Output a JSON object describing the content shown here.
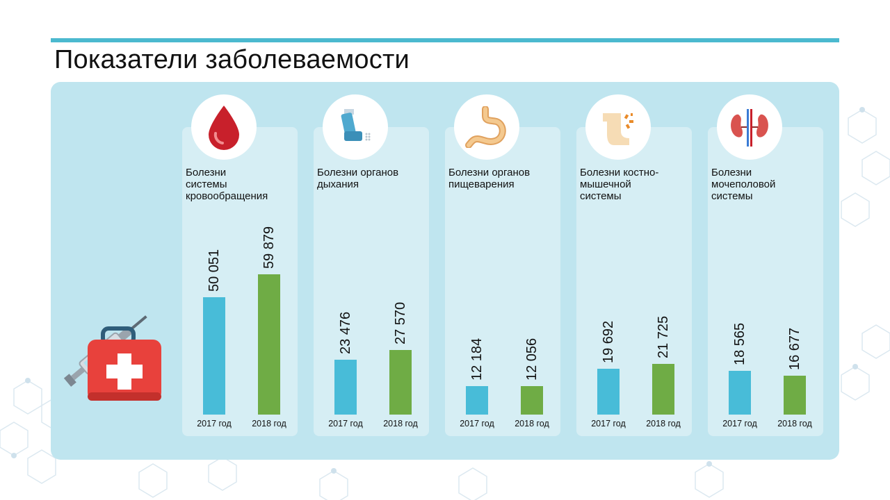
{
  "title": "Показатели заболеваемости",
  "colors": {
    "y2017": "#48bcd8",
    "y2018": "#6fac45",
    "accent": "#4bb9cf",
    "panel": "#bfe5ef"
  },
  "chart_data": {
    "type": "bar",
    "title": "Показатели заболеваемости",
    "series_labels": [
      "2017 год",
      "2018 год"
    ],
    "categories": [
      {
        "label": "Болезни\nсистемы\nкровообращения",
        "icon": "blood-drop-icon",
        "values": [
          50051,
          59879
        ],
        "value_labels": [
          "50 051",
          "59 879"
        ]
      },
      {
        "label": "Болезни органов\nдыхания",
        "icon": "inhaler-icon",
        "values": [
          23476,
          27570
        ],
        "value_labels": [
          "23 476",
          "27 570"
        ]
      },
      {
        "label": "Болезни органов\nпищеварения",
        "icon": "stomach-icon",
        "values": [
          12184,
          12056
        ],
        "value_labels": [
          "12 184",
          "12 056"
        ]
      },
      {
        "label": "Болезни костно-\nмышечной\nсистемы",
        "icon": "joint-pain-icon",
        "values": [
          19692,
          21725
        ],
        "value_labels": [
          "19 692",
          "21 725"
        ]
      },
      {
        "label": "Болезни\nмочеполовой\nсистемы",
        "icon": "kidneys-icon",
        "values": [
          18565,
          16677
        ],
        "value_labels": [
          "18 565",
          "16 677"
        ]
      }
    ],
    "ylim": [
      0,
      59879
    ]
  }
}
